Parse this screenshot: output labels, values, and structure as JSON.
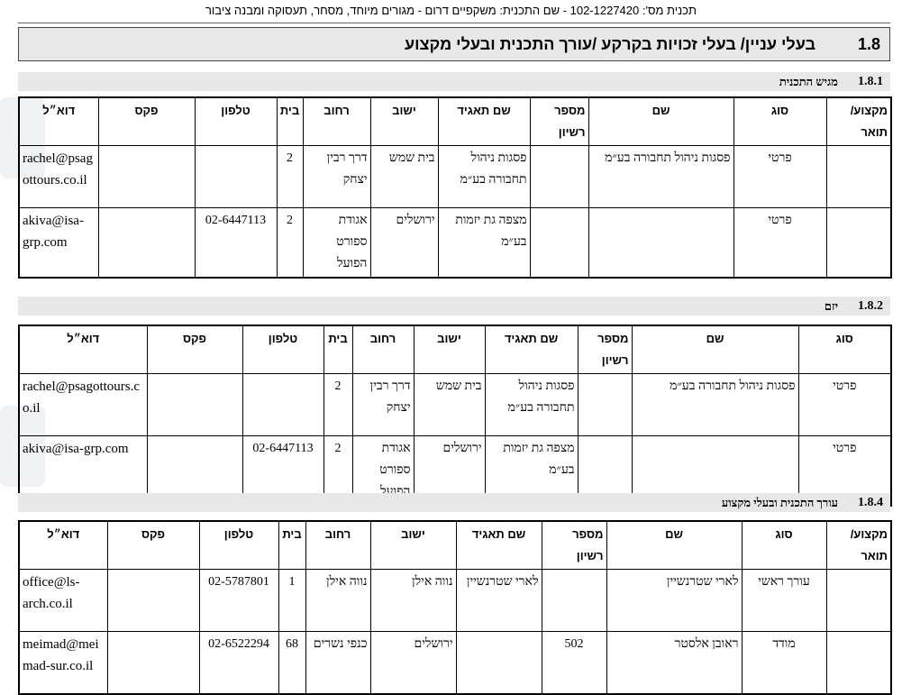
{
  "header": {
    "plan_line": "תכנית מס': 102-1227420 - שם התכנית: משקפיים דרום - מגורים מיוחד, מסחר, תעסוקה ומבנה ציבור"
  },
  "section": {
    "number": "1.8",
    "title": "בעלי עניין/ בעלי זכויות בקרקע /עורך התכנית ובעלי מקצוע"
  },
  "tables": [
    {
      "number": "1.8.1",
      "title": "מגיש התכנית",
      "columns": [
        "מקצוע/ תואר",
        "סוג",
        "שם",
        "מספר רשיון",
        "שם תאגיד",
        "ישוב",
        "רחוב",
        "בית",
        "טלפון",
        "פקס",
        "דוא״ל"
      ],
      "rows": [
        [
          "",
          "פרטי",
          "פסגות ניהול תחבורה בע״מ",
          "",
          "פסגות ניהול תחבורה בע״מ",
          "בית שמש",
          "דרך רבין יצחק",
          "2",
          "",
          "",
          "rachel@psagottours.co.il"
        ],
        [
          "",
          "פרטי",
          "",
          "",
          "מצפה גת יזמות בע״מ",
          "ירושלים",
          "אגודת ספורט הפועל",
          "2",
          "02-6447113",
          "",
          "akiva@isa-grp.com"
        ]
      ]
    },
    {
      "number": "1.8.2",
      "title": "יזם",
      "columns": [
        "סוג",
        "שם",
        "מספר רשיון",
        "שם תאגיד",
        "ישוב",
        "רחוב",
        "בית",
        "טלפון",
        "פקס",
        "דוא״ל"
      ],
      "rows": [
        [
          "פרטי",
          "פסגות ניהול תחבורה בע״מ",
          "",
          "פסגות ניהול תחבורה בע״מ",
          "בית שמש",
          "דרך רבין יצחק",
          "2",
          "",
          "",
          "rachel@psagottours.co.il"
        ],
        [
          "פרטי",
          "",
          "",
          "מצפה גת יזמות בע״מ",
          "ירושלים",
          "אגודת ספורט הפועל",
          "2",
          "02-6447113",
          "",
          "akiva@isa-grp.com"
        ]
      ]
    },
    {
      "number": "1.8.4",
      "title": "עורך התכנית ובעלי מקצוע",
      "columns": [
        "מקצוע/ תואר",
        "סוג",
        "שם",
        "מספר רשיון",
        "שם תאגיד",
        "ישוב",
        "רחוב",
        "בית",
        "טלפון",
        "פקס",
        "דוא״ל"
      ],
      "rows": [
        [
          "",
          "עורך ראשי",
          "לארי שטרנשיין",
          "",
          "לארי שטרנשיין",
          "נווה אילן",
          "נווה אילן",
          "1",
          "02-5787801",
          "",
          "office@ls-arch.co.il"
        ],
        [
          "",
          "מודד",
          "ראובן אלסטר",
          "502",
          "",
          "ירושלים",
          "כנפי נשרים",
          "68",
          "02-6522294",
          "",
          "meimad@meimad-sur.co.il"
        ]
      ]
    }
  ]
}
